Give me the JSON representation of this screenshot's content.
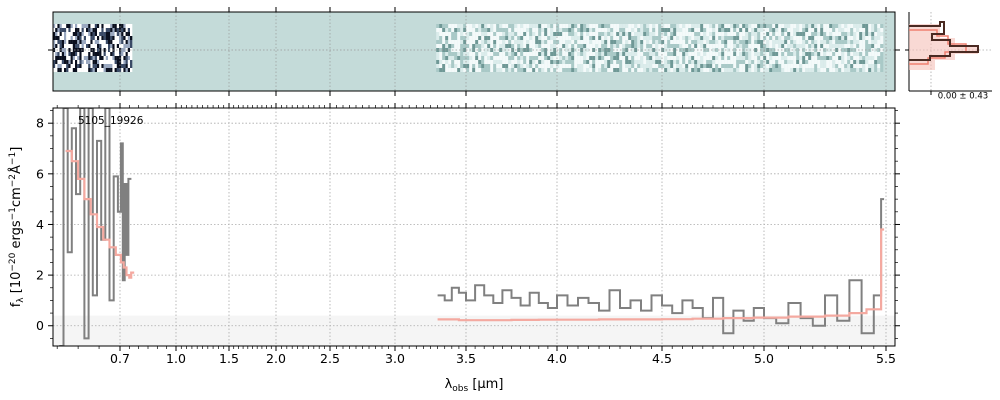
{
  "chart_data": [
    {
      "type": "heatmap",
      "panel": "2D spectrum",
      "xlim": [
        0.54,
        5.52
      ],
      "background_color": "#c4dbd9",
      "coverage_ranges_um": [
        [
          0.54,
          0.76
        ],
        [
          3.29,
          5.48
        ]
      ],
      "grid": true
    },
    {
      "type": "line",
      "panel": "cross-dispersion profile",
      "xtick_label": "0.00 ± 0.43",
      "colors": {
        "profile": "#4a2a22",
        "model": "#f08070"
      }
    },
    {
      "type": "line",
      "panel": "1D spectrum",
      "annotation": "5105_19926",
      "xlabel": "λobs [μm]",
      "ylabel": "fλ [10⁻²⁰ ergs⁻¹cm⁻²Å⁻¹]",
      "xscale": "custom (compressed ~log)",
      "xlim": [
        0.54,
        5.52
      ],
      "ylim": [
        -0.8,
        8.6
      ],
      "x_ticks": [
        0.7,
        1.0,
        1.5,
        2.0,
        2.5,
        3.0,
        3.5,
        4.0,
        4.5,
        5.0,
        5.5
      ],
      "x_tick_labels": [
        "0.7",
        "1.0",
        "1.5",
        "2.0",
        "2.5",
        "3.0",
        "3.5",
        "4.0",
        "4.5",
        "5.0",
        "5.5"
      ],
      "y_ticks": [
        0,
        2,
        4,
        6,
        8
      ],
      "y_tick_labels": [
        "0",
        "2",
        "4",
        "6",
        "8"
      ],
      "grid": true,
      "colors": {
        "data": "#808080",
        "model": "#f4a9a0",
        "band": "#f5f5f5"
      },
      "series": [
        {
          "role": "data",
          "segments": [
            {
              "x": [
                0.555,
                0.565,
                0.575,
                0.585,
                0.595,
                0.605,
                0.615,
                0.625,
                0.635,
                0.645,
                0.655,
                0.665,
                0.675,
                0.685,
                0.695,
                0.705,
                0.715,
                0.725,
                0.735,
                0.745
              ],
              "y": [
                -0.8,
                8.6,
                2.9,
                7.8,
                5.2,
                8.6,
                -0.5,
                8.6,
                1.2,
                7.3,
                3.4,
                8.6,
                1.0,
                5.9,
                4.5,
                7.2,
                1.8,
                5.6,
                2.8,
                5.8
              ]
            },
            {
              "x": [
                3.3,
                3.35,
                3.4,
                3.45,
                3.5,
                3.55,
                3.6,
                3.65,
                3.7,
                3.75,
                3.8,
                3.85,
                3.9,
                3.95,
                4.0,
                4.05,
                4.1,
                4.15,
                4.2,
                4.25,
                4.3,
                4.35,
                4.4,
                4.45,
                4.5,
                4.55,
                4.6,
                4.65,
                4.7,
                4.75,
                4.8,
                4.85,
                4.9,
                4.95,
                5.0,
                5.05,
                5.1,
                5.15,
                5.2,
                5.25,
                5.3,
                5.35,
                5.4,
                5.45,
                5.48
              ],
              "y": [
                1.2,
                1.0,
                1.5,
                1.3,
                1.0,
                1.6,
                1.2,
                0.9,
                1.4,
                1.1,
                0.8,
                1.3,
                0.9,
                0.7,
                1.2,
                0.8,
                1.1,
                0.9,
                0.6,
                1.4,
                0.7,
                1.0,
                0.6,
                1.2,
                0.8,
                0.5,
                1.0,
                0.7,
                0.3,
                1.1,
                -0.3,
                0.6,
                0.2,
                0.7,
                0.3,
                0.1,
                0.9,
                0.3,
                0.0,
                1.2,
                0.2,
                1.8,
                -0.3,
                1.2,
                5.0
              ]
            }
          ]
        },
        {
          "role": "model",
          "segments": [
            {
              "x": [
                0.57,
                0.585,
                0.6,
                0.615,
                0.63,
                0.645,
                0.66,
                0.675,
                0.69,
                0.705,
                0.72,
                0.735,
                0.75,
                0.76
              ],
              "y": [
                6.9,
                6.5,
                5.8,
                5.0,
                4.4,
                3.9,
                3.4,
                3.1,
                2.8,
                2.5,
                2.3,
                2.0,
                1.9,
                2.1
              ]
            },
            {
              "x": [
                3.3,
                3.45,
                3.6,
                3.75,
                3.9,
                4.05,
                4.2,
                4.35,
                4.5,
                4.65,
                4.8,
                4.95,
                5.1,
                5.25,
                5.35,
                5.42,
                5.48
              ],
              "y": [
                0.25,
                0.22,
                0.22,
                0.23,
                0.24,
                0.24,
                0.25,
                0.25,
                0.26,
                0.28,
                0.3,
                0.32,
                0.36,
                0.4,
                0.5,
                0.65,
                3.8
              ]
            }
          ]
        }
      ]
    }
  ]
}
